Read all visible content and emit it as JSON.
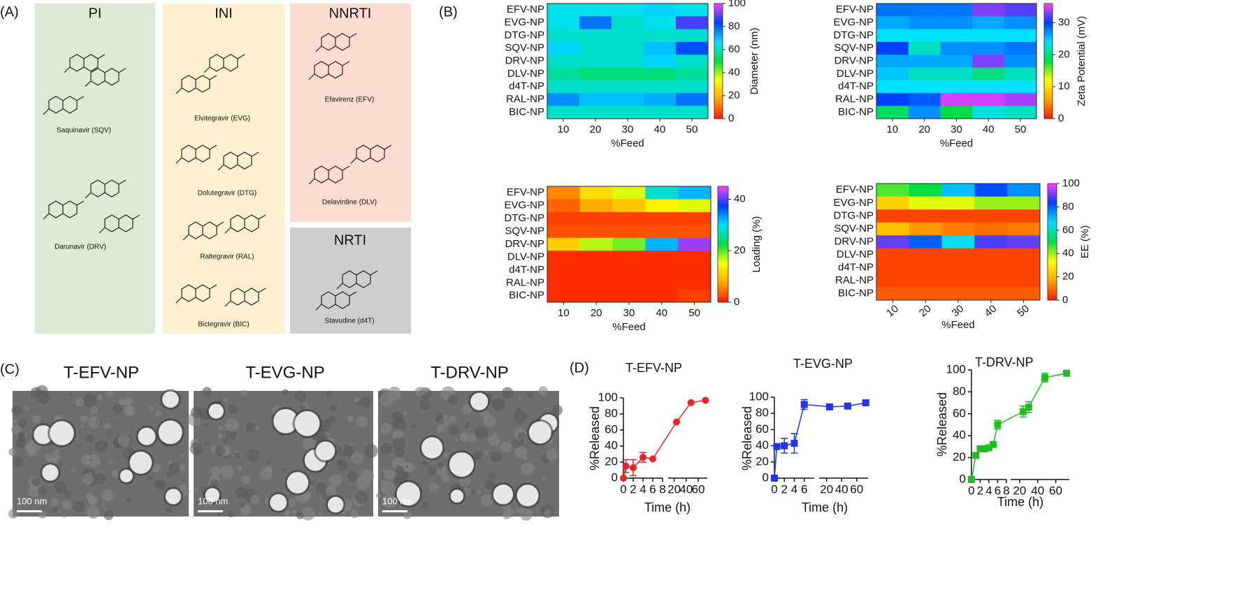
{
  "panel_labels": [
    "(A)",
    "(B)",
    "(C)",
    "(D)"
  ],
  "structures": {
    "groups": [
      {
        "title": "PI",
        "drugs": [
          "Saquinavir (SQV)",
          "Darunavir (DRV)"
        ]
      },
      {
        "title": "INI",
        "drugs": [
          "Elvitegravir (EVG)",
          "Dolutegravir (DTG)",
          "Raltegravir (RAL)",
          "Bictegravir (BIC)"
        ]
      },
      {
        "title": "NNRTI",
        "drugs": [
          "Efavirenz (EFV)",
          "Delavirdine (DLV)"
        ]
      },
      {
        "title": "NRTI",
        "drugs": [
          "Stavudine (d4T)"
        ]
      }
    ]
  },
  "chart_data": [
    {
      "type": "heatmap",
      "xlabel": "%Feed",
      "categories": [
        10,
        20,
        30,
        40,
        50
      ],
      "rows": [
        "EFV-NP",
        "EVG-NP",
        "DTG-NP",
        "SQV-NP",
        "DRV-NP",
        "DLV-NP",
        "d4T-NP",
        "RAL-NP",
        "BIC-NP"
      ],
      "values": [
        [
          65,
          65,
          65,
          68,
          65
        ],
        [
          65,
          78,
          62,
          65,
          88
        ],
        [
          62,
          62,
          62,
          62,
          62
        ],
        [
          68,
          62,
          62,
          70,
          82
        ],
        [
          62,
          62,
          62,
          68,
          62
        ],
        [
          58,
          55,
          55,
          55,
          58
        ],
        [
          62,
          62,
          62,
          62,
          62
        ],
        [
          75,
          70,
          70,
          72,
          78
        ],
        [
          62,
          62,
          62,
          62,
          62
        ]
      ],
      "colorbar_label": "Diameter (nm)",
      "clim": [
        0,
        100
      ],
      "cticks": [
        0,
        20,
        40,
        60,
        80,
        100
      ],
      "colormap": [
        "#ff1a00",
        "#ffa500",
        "#ffff00",
        "#00dd44",
        "#00e0ff",
        "#0040ff",
        "#ff40ff"
      ]
    },
    {
      "type": "heatmap",
      "xlabel": "%Feed",
      "categories": [
        10,
        20,
        30,
        40,
        50
      ],
      "rows": [
        "EFV-NP",
        "EVG-NP",
        "DTG-NP",
        "SQV-NP",
        "DRV-NP",
        "DLV-NP",
        "d4T-NP",
        "RAL-NP",
        "BIC-NP"
      ],
      "values": [
        [
          28,
          28,
          28,
          33,
          32
        ],
        [
          26,
          27,
          27,
          26,
          27
        ],
        [
          24,
          24,
          24,
          24,
          24
        ],
        [
          30,
          22,
          27,
          27,
          28
        ],
        [
          26,
          26,
          26,
          33,
          27
        ],
        [
          25,
          22,
          22,
          20,
          22
        ],
        [
          24,
          24,
          24,
          24,
          24
        ],
        [
          30,
          29,
          35,
          35,
          34
        ],
        [
          19,
          27,
          18,
          23,
          22
        ]
      ],
      "colorbar_label": "Zeta Potential (mV)",
      "clim": [
        0,
        36
      ],
      "cticks": [
        0,
        10,
        20,
        30
      ],
      "colormap": [
        "#ff1a00",
        "#ffa500",
        "#ffff00",
        "#00dd44",
        "#00e0ff",
        "#0040ff",
        "#ff40ff"
      ]
    },
    {
      "type": "heatmap",
      "xlabel": "%Feed",
      "categories": [
        10,
        20,
        30,
        40,
        50
      ],
      "rows": [
        "EFV-NP",
        "EVG-NP",
        "DTG-NP",
        "SQV-NP",
        "DRV-NP",
        "DLV-NP",
        "d4T-NP",
        "RAL-NP",
        "BIC-NP"
      ],
      "values": [
        [
          6,
          12,
          16,
          28,
          32
        ],
        [
          4,
          8,
          10,
          14,
          16
        ],
        [
          2,
          2,
          2,
          2,
          2
        ],
        [
          3,
          3,
          3,
          3,
          3
        ],
        [
          11,
          17,
          19,
          32,
          42
        ],
        [
          1,
          1,
          1,
          1,
          1
        ],
        [
          1,
          1,
          1,
          1,
          1
        ],
        [
          1,
          1,
          1,
          1,
          1
        ],
        [
          1,
          1,
          1,
          1,
          2
        ]
      ],
      "colorbar_label": "Loading (%)",
      "clim": [
        0,
        45
      ],
      "cticks": [
        0,
        20,
        40
      ],
      "colormap": [
        "#ff1a00",
        "#ffa500",
        "#ffff00",
        "#00dd44",
        "#00e0ff",
        "#0040ff",
        "#ff40ff"
      ]
    },
    {
      "type": "heatmap",
      "xlabel": "%Feed",
      "categories": [
        10,
        20,
        30,
        40,
        50
      ],
      "rows": [
        "EFV-NP",
        "EVG-NP",
        "DTG-NP",
        "SQV-NP",
        "DRV-NP",
        "DLV-NP",
        "d4T-NP",
        "RAL-NP",
        "BIC-NP"
      ],
      "values": [
        [
          45,
          50,
          70,
          82,
          75
        ],
        [
          25,
          35,
          35,
          40,
          40
        ],
        [
          5,
          5,
          5,
          5,
          5
        ],
        [
          22,
          15,
          12,
          10,
          12
        ],
        [
          90,
          80,
          65,
          88,
          90
        ],
        [
          5,
          5,
          5,
          5,
          5
        ],
        [
          5,
          5,
          5,
          5,
          5
        ],
        [
          5,
          5,
          5,
          5,
          5
        ],
        [
          8,
          8,
          8,
          8,
          8
        ]
      ],
      "colorbar_label": "EE (%)",
      "clim": [
        0,
        100
      ],
      "cticks": [
        0,
        20,
        40,
        60,
        80,
        100
      ],
      "colormap": [
        "#ff1a00",
        "#ffa500",
        "#ffff00",
        "#00dd44",
        "#00e0ff",
        "#0040ff",
        "#ff40ff"
      ]
    },
    {
      "type": "line",
      "title": "T-EFV-NP",
      "xlabel": "Time (h)",
      "ylabel": "%Released",
      "color": "#ee2222",
      "marker": "circle",
      "x": [
        0,
        0.5,
        2,
        4,
        6,
        24,
        48,
        72
      ],
      "values": [
        0,
        15,
        13,
        26,
        24,
        70,
        94,
        97
      ],
      "errors": [
        0,
        8,
        10,
        6,
        0,
        0,
        0,
        0
      ],
      "xlim": [
        0,
        75
      ],
      "xbreak": [
        8,
        10
      ],
      "xticks": [
        0,
        2,
        4,
        6,
        8,
        20,
        40,
        60
      ],
      "ylim": [
        0,
        100
      ],
      "yticks": [
        0,
        20,
        40,
        60,
        80,
        100
      ]
    },
    {
      "type": "line",
      "title": "T-EVG-NP",
      "xlabel": "Time (h)",
      "ylabel": "%Released",
      "color": "#2233ee",
      "marker": "square",
      "x": [
        0,
        0.5,
        2,
        4,
        6,
        24,
        48,
        72
      ],
      "values": [
        0,
        39,
        40,
        43,
        91,
        88,
        89,
        93
      ],
      "errors": [
        0,
        2,
        9,
        12,
        6,
        3,
        2,
        2
      ],
      "xlim": [
        0,
        75
      ],
      "xbreak": [
        8,
        10
      ],
      "xticks": [
        0,
        2,
        4,
        6,
        20,
        40,
        60
      ],
      "ylim": [
        0,
        100
      ],
      "yticks": [
        0,
        20,
        40,
        60,
        80,
        100
      ]
    },
    {
      "type": "line",
      "title": "T-DRV-NP",
      "xlabel": "Time (h)",
      "ylabel": "%Released",
      "color": "#22bb22",
      "marker": "square",
      "x": [
        0,
        1,
        2,
        3,
        4,
        5,
        6,
        24,
        30,
        48,
        72
      ],
      "values": [
        0,
        22,
        28,
        28,
        29,
        32,
        50,
        62,
        66,
        93,
        97
      ],
      "errors": [
        0,
        1,
        1,
        1,
        1,
        2,
        4,
        5,
        5,
        4,
        2
      ],
      "xlim": [
        0,
        75
      ],
      "xbreak": [
        8,
        10
      ],
      "xticks": [
        0,
        2,
        4,
        6,
        8,
        20,
        40,
        60
      ],
      "ylim": [
        0,
        100
      ],
      "yticks": [
        0,
        20,
        40,
        60,
        80,
        100
      ]
    }
  ],
  "tem": {
    "images": [
      {
        "title": "T-EFV-NP",
        "scale_bar": "100 nm"
      },
      {
        "title": "T-EVG-NP",
        "scale_bar": "100 nm"
      },
      {
        "title": "T-DRV-NP",
        "scale_bar": "100 nm"
      }
    ]
  }
}
